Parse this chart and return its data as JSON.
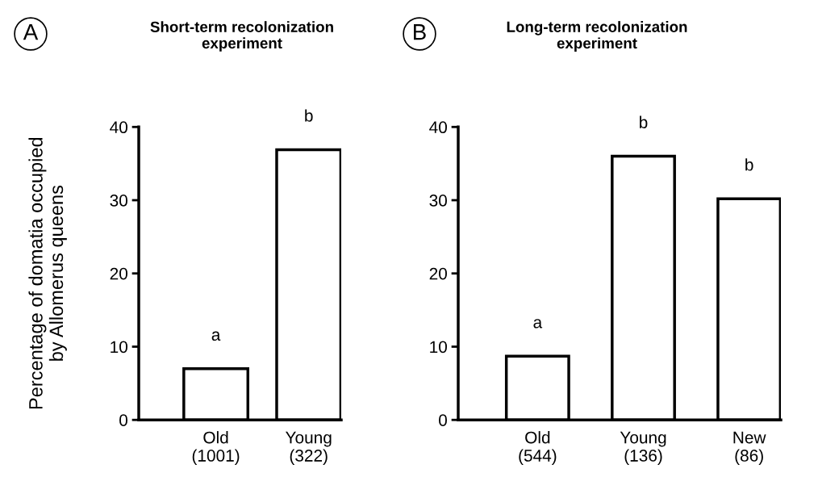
{
  "chart_data": [
    {
      "type": "bar",
      "title": "Short-term recolonization\nexperiment",
      "ylabel": "Percentage of domatia occupied\nby Allomerus queens",
      "categories": [
        "Old\n(1001)",
        "Young\n(322)"
      ],
      "values": [
        7.0,
        36.9
      ],
      "color": "#ffffff",
      "ylim": [
        0,
        40
      ],
      "yticks": [
        0,
        10,
        20,
        30,
        40
      ],
      "grid": false,
      "annotations": [
        "A",
        "a",
        "b"
      ]
    },
    {
      "type": "bar",
      "title": "Long-term recolonization\nexperiment",
      "categories": [
        "Old\n(544)",
        "Young\n(136)",
        "New\n(86)"
      ],
      "values": [
        8.7,
        36.0,
        30.2
      ],
      "color": "#ffffff",
      "ylim": [
        0,
        40
      ],
      "yticks": [
        0,
        10,
        20,
        30,
        40
      ],
      "grid": false,
      "annotations": [
        "B",
        "a",
        "b",
        "b"
      ]
    }
  ]
}
